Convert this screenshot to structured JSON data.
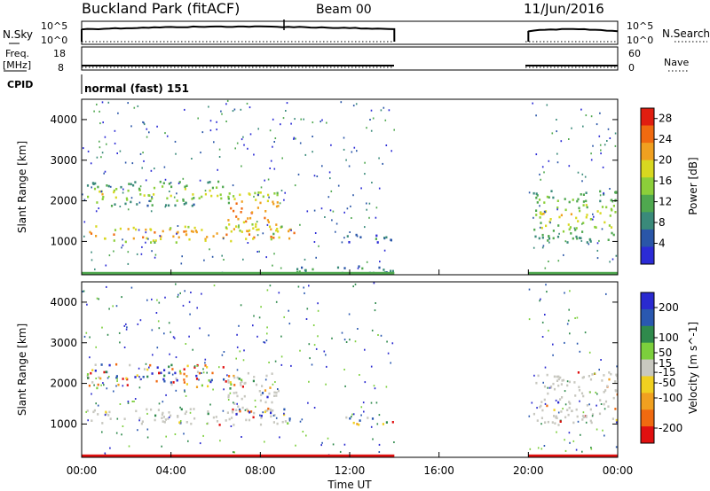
{
  "header": {
    "station": "Buckland Park (fitACF)",
    "beam": "Beam 00",
    "date": "11/Jun/2016"
  },
  "strips": {
    "nsky_label": "N.Sky",
    "nsky_ticks": [
      "10^5",
      "10^0"
    ],
    "nsearch_label": "N.Search",
    "nsearch_ticks": [
      "10^5",
      "10^0"
    ],
    "freq_label": "Freq.",
    "freq_unit": "[MHz]",
    "freq_ticks": [
      "18",
      "8"
    ],
    "nave_label": "Nave",
    "nave_ticks": [
      "60",
      "0"
    ],
    "cpid_label": "CPID",
    "cpid_value": "normal (fast) 151"
  },
  "x_axis": {
    "label": "Time UT",
    "ticks": [
      "00:00",
      "04:00",
      "08:00",
      "12:00",
      "16:00",
      "20:00",
      "00:00"
    ]
  },
  "chart_data": [
    {
      "type": "heatmap",
      "panel": "power",
      "ylabel": "Slant Range [km]",
      "y_ticks": [
        1000,
        2000,
        3000,
        4000
      ],
      "ylim": [
        180,
        4500
      ],
      "xlim_hours": [
        0,
        24
      ],
      "colorbar": {
        "label": "Power [dB]",
        "ticks": [
          4,
          8,
          12,
          16,
          20,
          24,
          28
        ],
        "range": [
          0,
          30
        ],
        "colors": [
          "#2b2bd6",
          "#2a56a8",
          "#3a8a7a",
          "#4fa84f",
          "#8ccf3a",
          "#d8d820",
          "#f0a020",
          "#f06a10",
          "#e01e10"
        ]
      },
      "data_gap_hours": [
        14,
        20
      ],
      "regions": [
        {
          "t": [
            0.2,
            9.5
          ],
          "range_km": [
            1000,
            1400
          ],
          "level": "high"
        },
        {
          "t": [
            0.2,
            6.8
          ],
          "range_km": [
            1900,
            2500
          ],
          "level": "medium"
        },
        {
          "t": [
            6.5,
            8.8
          ],
          "range_km": [
            1200,
            2300
          ],
          "level": "high"
        },
        {
          "t": [
            9.5,
            14.0
          ],
          "range_km": [
            200,
            450
          ],
          "level": "low"
        },
        {
          "t": [
            11.5,
            14.0
          ],
          "range_km": [
            1000,
            1200
          ],
          "level": "low"
        },
        {
          "t": [
            20.2,
            24.0
          ],
          "range_km": [
            1000,
            2300
          ],
          "level": "medium"
        }
      ]
    },
    {
      "type": "heatmap",
      "panel": "velocity",
      "ylabel": "Slant Range [km]",
      "y_ticks": [
        1000,
        2000,
        3000,
        4000
      ],
      "ylim": [
        180,
        4500
      ],
      "xlim_hours": [
        0,
        24
      ],
      "colorbar": {
        "label": "Velocity [m s^-1]",
        "ticks": [
          200,
          100,
          50,
          15,
          -15,
          -50,
          -100,
          -200
        ],
        "range": [
          -250,
          250
        ],
        "colors": [
          "#2a2ad0",
          "#2a58b0",
          "#2f8a4c",
          "#7ccf3c",
          "#c8c8c0",
          "#f0d020",
          "#f0a020",
          "#f06a10",
          "#e01010"
        ]
      },
      "data_gap_hours": [
        14,
        20
      ],
      "regions": [
        {
          "t": [
            0.2,
            9.5
          ],
          "range_km": [
            1000,
            1400
          ],
          "level": "ground-scatter"
        },
        {
          "t": [
            0.2,
            6.8
          ],
          "range_km": [
            1900,
            2500
          ],
          "level": "mixed"
        },
        {
          "t": [
            6.5,
            8.8
          ],
          "range_km": [
            1200,
            2300
          ],
          "level": "ground-scatter"
        },
        {
          "t": [
            11.5,
            14.0
          ],
          "range_km": [
            1000,
            1200
          ],
          "level": "mixed"
        },
        {
          "t": [
            20.2,
            24.0
          ],
          "range_km": [
            1000,
            2300
          ],
          "level": "ground-scatter"
        }
      ]
    }
  ]
}
